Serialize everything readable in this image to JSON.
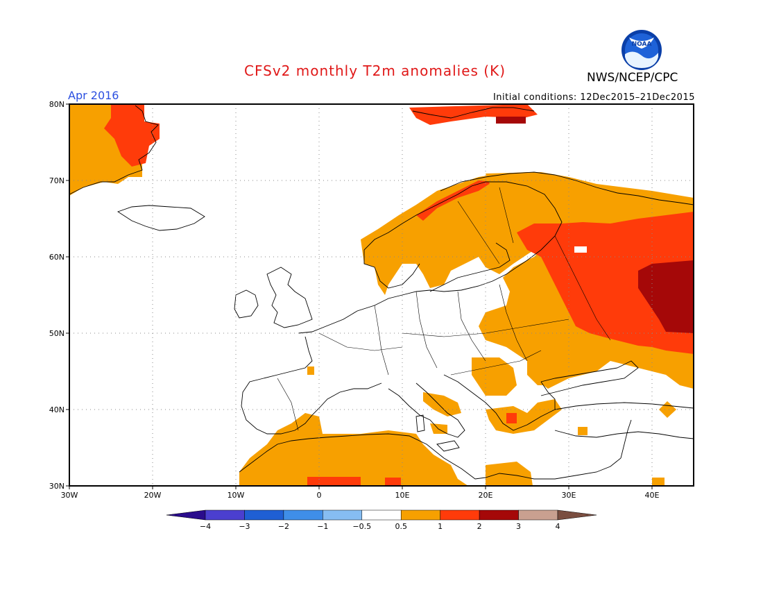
{
  "title": "CFSv2 monthly T2m anomalies (K)",
  "organization": "NWS/NCEP/CPC",
  "logo_text": "NOAA",
  "period": "Apr 2016",
  "initial_conditions": "Initial conditions: 12Dec2015–21Dec2015",
  "map": {
    "region": "Europe",
    "lon_range": [
      -30,
      45
    ],
    "lat_range": [
      30,
      80
    ],
    "lat_ticks": [
      "80N",
      "70N",
      "60N",
      "50N",
      "40N",
      "30N"
    ],
    "lon_ticks": [
      "30W",
      "20W",
      "10W",
      "0",
      "10E",
      "20E",
      "30E",
      "40E"
    ],
    "grid": "dotted"
  },
  "colorbar": {
    "labels": [
      "−4",
      "−3",
      "−2",
      "−1",
      "−0.5",
      "0.5",
      "1",
      "2",
      "3",
      "4"
    ],
    "colors": [
      "#2a0c8c",
      "#4b3fcf",
      "#1f5fd4",
      "#3f8ee8",
      "#86bdf2",
      "#ffffff",
      "#f7a000",
      "#ff3b0a",
      "#a50808",
      "#c9a090",
      "#7a4e40"
    ]
  },
  "anomaly_colors": {
    "0.5-1": "#f7a000",
    "1-2": "#ff3b0a",
    "2-3": "#a50808"
  }
}
